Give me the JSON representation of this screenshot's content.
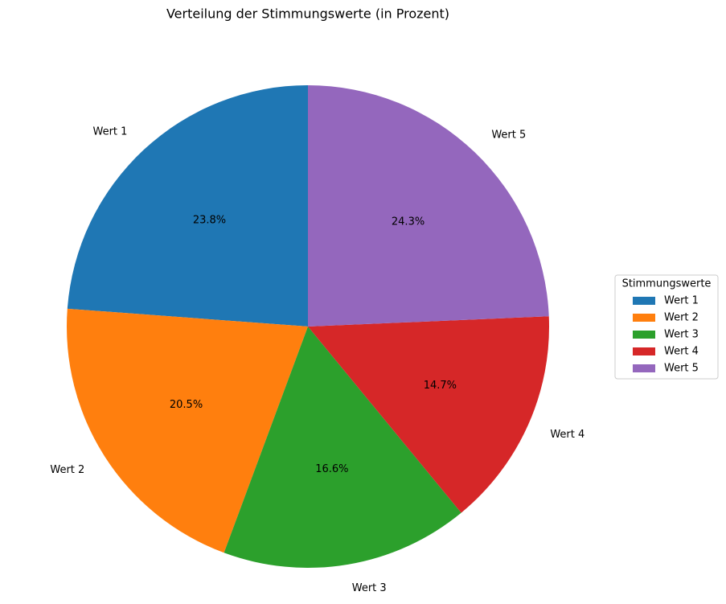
{
  "chart_data": {
    "type": "pie",
    "title": "Verteilung der Stimmungswerte (in Prozent)",
    "categories": [
      "Wert 1",
      "Wert 2",
      "Wert 3",
      "Wert 4",
      "Wert 5"
    ],
    "values": [
      23.8,
      20.5,
      16.6,
      14.7,
      24.3
    ],
    "value_labels": [
      "23.8%",
      "20.5%",
      "16.6%",
      "14.7%",
      "24.3%"
    ],
    "colors": [
      "#1f77b4",
      "#ff7f0e",
      "#2ca02c",
      "#d62728",
      "#9467bd"
    ],
    "legend_title": "Stimmungswerte",
    "legend": "right"
  }
}
